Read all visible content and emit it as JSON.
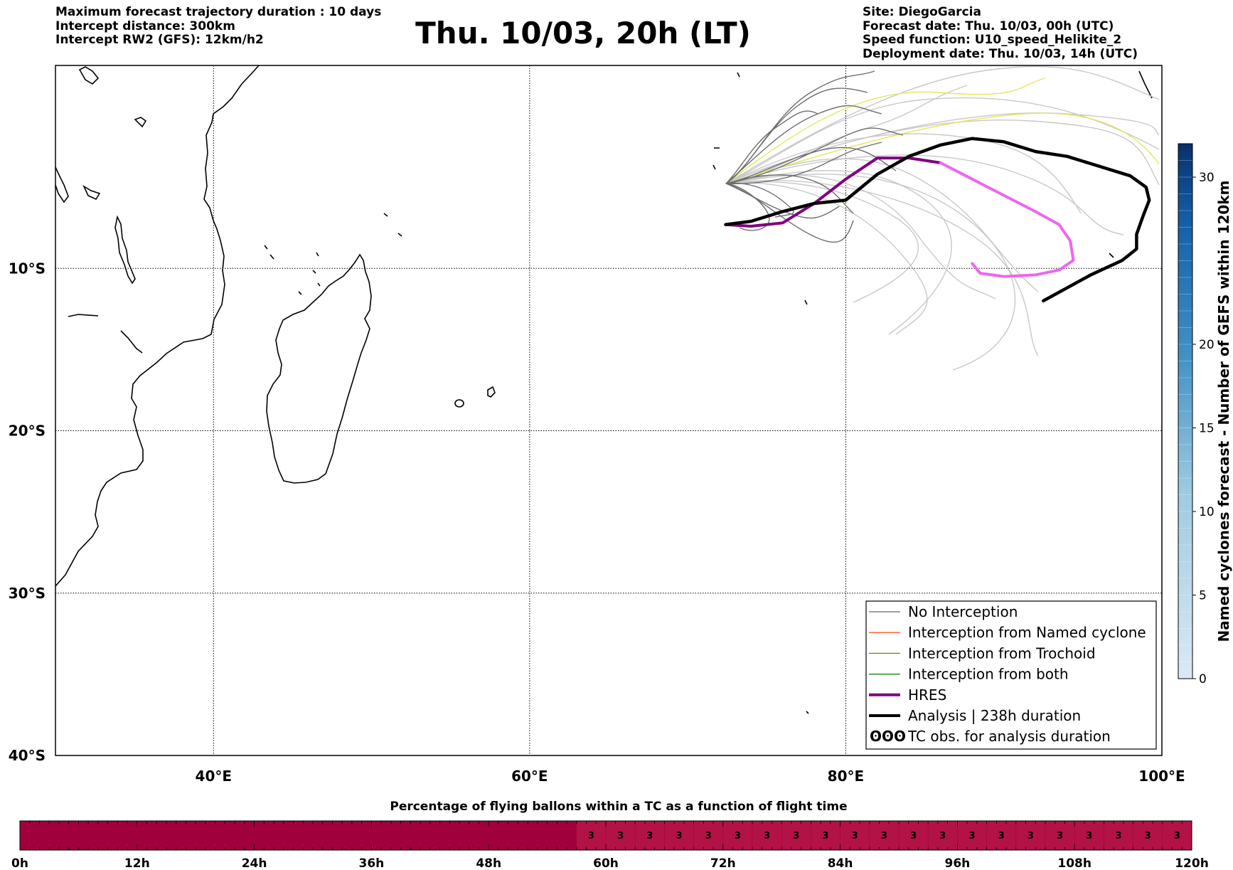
{
  "header": {
    "left": [
      "Maximum forecast trajectory duration : 10 days",
      "Intercept distance: 300km",
      "Intercept RW2 (GFS):  12km/h2"
    ],
    "title": "Thu. 10/03, 20h (LT)",
    "right": [
      "Site: DiegoGarcia",
      "Forecast date: Thu. 10/03, 00h (UTC)",
      "Speed function: U10_speed_Helikite_2",
      "Deployment date: Thu. 10/03, 14h (UTC)"
    ]
  },
  "map": {
    "lon_range": [
      30,
      100
    ],
    "lat_range": [
      -40,
      2.5
    ],
    "lon_ticks": [
      "40°E",
      "60°E",
      "80°E",
      "100°E"
    ],
    "lat_ticks": [
      "10°S",
      "20°S",
      "30°S",
      "40°S"
    ],
    "grid": true
  },
  "legend": {
    "placement": "bottom-right",
    "items": [
      {
        "label": "No Interception",
        "color": "#666666",
        "style": "thin-line"
      },
      {
        "label": "Interception from Named cyclone",
        "color": "#ff5a1f",
        "style": "thin-line"
      },
      {
        "label": "Interception from Trochoid",
        "color": "#808000",
        "style": "thin-line"
      },
      {
        "label": "Interception from both",
        "color": "#008000",
        "style": "thin-line"
      },
      {
        "label": "HRES",
        "color": "#800080",
        "style": "thick-line"
      },
      {
        "label": "Analysis | 238h duration",
        "color": "#000000",
        "style": "thick-line"
      },
      {
        "label": "TC obs. for analysis duration",
        "color": "#000000",
        "style": "tc-symbol",
        "symbol": "ʘʘʘ"
      }
    ]
  },
  "colorbar": {
    "label": "Named cyclones forecast - Number of GEFS within 120km",
    "ticks": [
      "0",
      "5",
      "10",
      "15",
      "20",
      "30"
    ],
    "tick_values": [
      0,
      5,
      10,
      15,
      20,
      30
    ],
    "range": [
      0,
      32
    ],
    "colors": [
      "#dbe9f6",
      "#08306b"
    ]
  },
  "bottom_bar": {
    "title": "Percentage of flying ballons within a TC as a function of flight time",
    "ticks": [
      "0h",
      "12h",
      "24h",
      "36h",
      "48h",
      "60h",
      "72h",
      "84h",
      "96h",
      "108h",
      "120h"
    ],
    "tick_hours": [
      0,
      12,
      24,
      36,
      48,
      60,
      72,
      84,
      96,
      108,
      120
    ],
    "cells_start_hour": 57,
    "cell_hours": 3,
    "cell_value": "3",
    "color_zero": "#a0003c",
    "color_value": "#b21245"
  },
  "chart_data": {
    "type": "line",
    "site": {
      "name": "DiegoGarcia",
      "lon": 72.4,
      "lat": -7.3
    },
    "series": [
      {
        "name": "HRES",
        "color": "#800080",
        "points": [
          [
            72.4,
            -7.3
          ],
          [
            74,
            -7.4
          ],
          [
            76,
            -7.2
          ],
          [
            78,
            -6
          ],
          [
            80,
            -4.5
          ],
          [
            82,
            -3.2
          ],
          [
            84,
            -3.2
          ],
          [
            86,
            -3.5
          ]
        ]
      },
      {
        "name": "HRES",
        "color": "#ee66ee",
        "points": [
          [
            86,
            -3.5
          ],
          [
            88,
            -4.5
          ],
          [
            90,
            -5.5
          ],
          [
            92,
            -6.5
          ],
          [
            93.5,
            -7.3
          ],
          [
            94.2,
            -8.3
          ],
          [
            94.4,
            -9.5
          ],
          [
            93.5,
            -10.1
          ],
          [
            92,
            -10.4
          ],
          [
            90,
            -10.5
          ],
          [
            88.5,
            -10.3
          ],
          [
            88,
            -9.7
          ]
        ]
      },
      {
        "name": "Analysis | 238h duration",
        "color": "#000000",
        "points": [
          [
            72.4,
            -7.3
          ],
          [
            74,
            -7.1
          ],
          [
            76,
            -6.5
          ],
          [
            78,
            -6
          ],
          [
            80,
            -5.8
          ],
          [
            82,
            -4.2
          ],
          [
            84,
            -3.1
          ],
          [
            86,
            -2.4
          ],
          [
            88,
            -2
          ],
          [
            90,
            -2.2
          ],
          [
            92,
            -2.8
          ],
          [
            94,
            -3.1
          ],
          [
            96,
            -3.7
          ],
          [
            98,
            -4.3
          ],
          [
            99,
            -5
          ],
          [
            99.2,
            -5.8
          ],
          [
            98.8,
            -6.8
          ],
          [
            98.4,
            -7.9
          ],
          [
            98.4,
            -8.8
          ],
          [
            97.5,
            -9.5
          ],
          [
            95.5,
            -10.4
          ],
          [
            94,
            -11.2
          ],
          [
            92.5,
            -12
          ]
        ]
      }
    ]
  }
}
